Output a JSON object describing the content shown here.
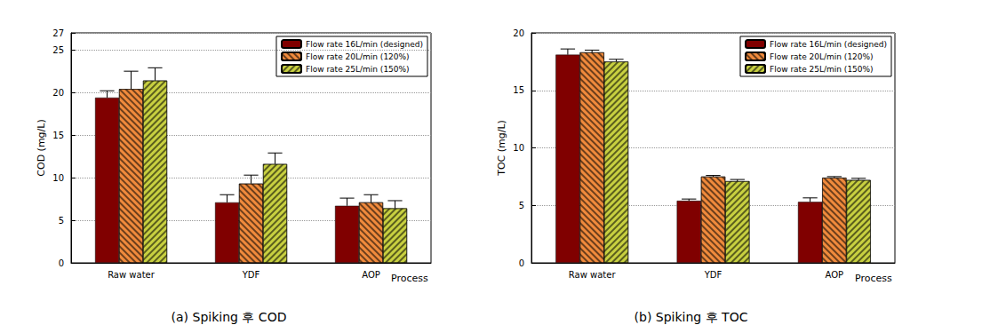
{
  "chart_data": [
    {
      "type": "bar",
      "title": "(a) Spiking 후 COD",
      "x_label": "Process",
      "y_label": "COD (mg/L)",
      "categories": [
        "Raw water",
        "YDF",
        "AOP"
      ],
      "series": [
        {
          "name": "Flow rate 16L/min (designed)",
          "color": "#800000",
          "values": [
            19.4,
            7.1,
            6.7
          ],
          "errors": [
            0.8,
            0.9,
            0.9
          ]
        },
        {
          "name": "Flow rate 20L/min (120%)",
          "color": "#f08a3c",
          "values": [
            20.4,
            9.3,
            7.1
          ],
          "errors": [
            2.1,
            1.0,
            0.9
          ]
        },
        {
          "name": "Flow rate 25L/min (150%)",
          "color": "#c8d040",
          "values": [
            21.4,
            11.6,
            6.4
          ],
          "errors": [
            1.5,
            1.3,
            0.9
          ]
        }
      ],
      "ylim": [
        0,
        27
      ],
      "yticks": [
        0,
        5,
        10,
        15,
        20,
        25
      ],
      "grid": true,
      "legend": "upper right"
    },
    {
      "type": "bar",
      "title": "(b) Spiking 후 TOC",
      "x_label": "Process",
      "y_label": "TOC (mg/L)",
      "categories": [
        "Raw water",
        "YDF",
        "AOP"
      ],
      "series": [
        {
          "name": "Flow rate 16L/min (designed)",
          "color": "#800000",
          "values": [
            18.1,
            5.4,
            5.3
          ],
          "errors": [
            0.5,
            0.15,
            0.35
          ]
        },
        {
          "name": "Flow rate 20L/min (120%)",
          "color": "#f08a3c",
          "values": [
            18.3,
            7.5,
            7.4
          ],
          "errors": [
            0.2,
            0.1,
            0.1
          ]
        },
        {
          "name": "Flow rate 25L/min (150%)",
          "color": "#c8d040",
          "values": [
            17.5,
            7.1,
            7.2
          ],
          "errors": [
            0.2,
            0.15,
            0.15
          ]
        }
      ],
      "ylim": [
        0,
        20
      ],
      "yticks": [
        0,
        5,
        10,
        15,
        20
      ],
      "grid": true,
      "legend": "upper right"
    }
  ]
}
